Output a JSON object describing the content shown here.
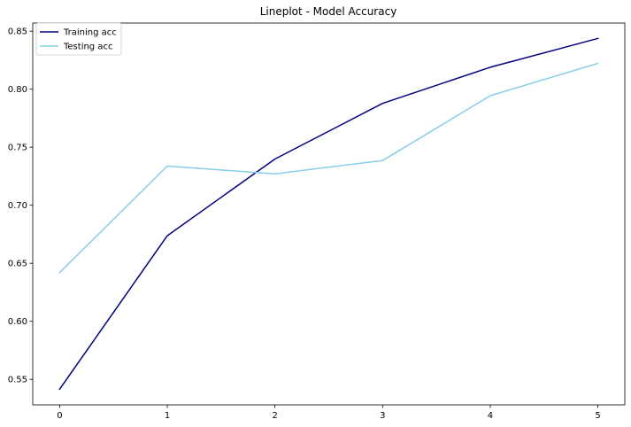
{
  "chart_data": {
    "type": "line",
    "title": "Lineplot - Model Accuracy",
    "xlabel": "",
    "ylabel": "",
    "x": [
      0,
      1,
      2,
      3,
      4,
      5
    ],
    "xlim": [
      -0.25,
      5.25
    ],
    "ylim": [
      0.528,
      0.857
    ],
    "xticks": [
      "0",
      "1",
      "2",
      "3",
      "4",
      "5"
    ],
    "yticks": [
      "0.55",
      "0.60",
      "0.65",
      "0.70",
      "0.75",
      "0.80",
      "0.85"
    ],
    "ytick_values": [
      0.55,
      0.6,
      0.65,
      0.7,
      0.75,
      0.8,
      0.85
    ],
    "grid": false,
    "legend_position": "top-left",
    "series": [
      {
        "name": "Training acc",
        "color": "#000080",
        "values": [
          0.5415,
          0.6737,
          0.7398,
          0.7878,
          0.8189,
          0.8437
        ]
      },
      {
        "name": "Testing acc",
        "color": "#87ceeb",
        "values": [
          0.642,
          0.7337,
          0.7271,
          0.7385,
          0.7944,
          0.8223
        ]
      }
    ]
  }
}
